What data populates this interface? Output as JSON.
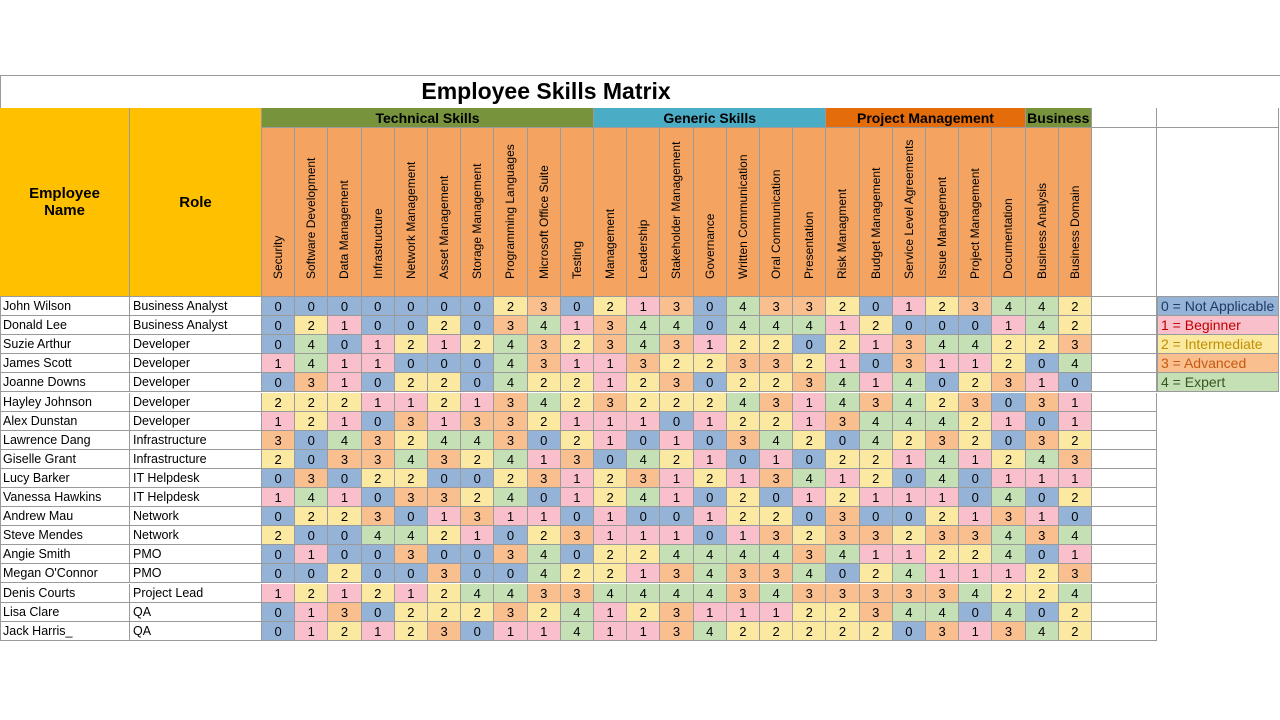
{
  "title": "Employee Skills Matrix",
  "headers": {
    "name": "Employee Name",
    "role": "Role"
  },
  "groups": [
    {
      "label": "Technical Skills",
      "color": "#77933c",
      "span": 10
    },
    {
      "label": "Generic Skills",
      "color": "#4bacc6",
      "span": 7
    },
    {
      "label": "Project Management",
      "color": "#e46c0a",
      "span": 6
    },
    {
      "label": "Business",
      "color": "#77933c",
      "span": 2
    }
  ],
  "skills": [
    "Security",
    "Software Development",
    "Data Management",
    "Infrastructure",
    "Network Management",
    "Asset Management",
    "Storage Management",
    "Programming Languages",
    "Microsoft Office Suite",
    "Testing",
    "Management",
    "Leadership",
    "Stakeholder Management",
    "Governance",
    "Written Communication",
    "Oral Communication",
    "Presentation",
    "Risk Managment",
    "Budget Management",
    "Service Level Agreements",
    "Issue Management",
    "Project Management",
    "Documentation",
    "Business Analysis",
    "Business Domain"
  ],
  "level_colors": {
    "0": "#95b3d7",
    "1": "#f9c0cb",
    "2": "#fbe9a2",
    "3": "#fabf8f",
    "4": "#c4e0b4"
  },
  "legend": [
    {
      "level": 0,
      "label": "0 = Not Applicable",
      "text_color": "#1f3864"
    },
    {
      "level": 1,
      "label": "1 = Beginner",
      "text_color": "#c00000"
    },
    {
      "level": 2,
      "label": "2 = Intermediate",
      "text_color": "#bf8f00"
    },
    {
      "level": 3,
      "label": "3 = Advanced",
      "text_color": "#c55a11"
    },
    {
      "level": 4,
      "label": "4 = Expert",
      "text_color": "#375623"
    }
  ],
  "employees": [
    {
      "name": "John Wilson",
      "role": "Business Analyst",
      "scores": [
        0,
        0,
        0,
        0,
        0,
        0,
        0,
        2,
        3,
        0,
        2,
        1,
        3,
        0,
        4,
        3,
        3,
        2,
        0,
        1,
        2,
        3,
        4,
        4,
        2
      ]
    },
    {
      "name": "Donald Lee",
      "role": "Business Analyst",
      "scores": [
        0,
        2,
        1,
        0,
        0,
        2,
        0,
        3,
        4,
        1,
        3,
        4,
        4,
        0,
        4,
        4,
        4,
        1,
        2,
        0,
        0,
        0,
        1,
        4,
        2
      ]
    },
    {
      "name": "Suzie Arthur",
      "role": "Developer",
      "scores": [
        0,
        4,
        0,
        1,
        2,
        1,
        2,
        4,
        3,
        2,
        3,
        4,
        3,
        1,
        2,
        2,
        0,
        2,
        1,
        3,
        4,
        4,
        2,
        2,
        3
      ]
    },
    {
      "name": "James Scott",
      "role": "Developer",
      "scores": [
        1,
        4,
        1,
        1,
        0,
        0,
        0,
        4,
        3,
        1,
        1,
        3,
        2,
        2,
        3,
        3,
        2,
        1,
        0,
        3,
        1,
        1,
        2,
        0,
        4
      ]
    },
    {
      "name": "Joanne Downs",
      "role": "Developer",
      "scores": [
        0,
        3,
        1,
        0,
        2,
        2,
        0,
        4,
        2,
        2,
        1,
        2,
        3,
        0,
        2,
        2,
        3,
        4,
        1,
        4,
        0,
        2,
        3,
        1,
        0
      ]
    },
    {
      "name": "Hayley Johnson",
      "role": "Developer",
      "scores": [
        2,
        2,
        2,
        1,
        1,
        2,
        1,
        3,
        4,
        2,
        3,
        2,
        2,
        2,
        4,
        3,
        1,
        4,
        3,
        4,
        2,
        3,
        0,
        3,
        1
      ]
    },
    {
      "name": "Alex Dunstan",
      "role": "Developer",
      "scores": [
        1,
        2,
        1,
        0,
        3,
        1,
        3,
        3,
        2,
        1,
        1,
        1,
        0,
        1,
        2,
        2,
        1,
        3,
        4,
        4,
        4,
        2,
        1,
        0,
        1
      ]
    },
    {
      "name": "Lawrence Dang",
      "role": "Infrastructure",
      "scores": [
        3,
        0,
        4,
        3,
        2,
        4,
        4,
        3,
        0,
        2,
        1,
        0,
        1,
        0,
        3,
        4,
        2,
        0,
        4,
        2,
        3,
        2,
        0,
        3,
        2
      ]
    },
    {
      "name": "Giselle Grant",
      "role": "Infrastructure",
      "scores": [
        2,
        0,
        3,
        3,
        4,
        3,
        2,
        4,
        1,
        3,
        0,
        4,
        2,
        1,
        0,
        1,
        0,
        2,
        2,
        1,
        4,
        1,
        2,
        4,
        3
      ]
    },
    {
      "name": "Lucy Barker",
      "role": "IT Helpdesk",
      "scores": [
        0,
        3,
        0,
        2,
        2,
        0,
        0,
        2,
        3,
        1,
        2,
        3,
        1,
        2,
        1,
        3,
        4,
        1,
        2,
        0,
        4,
        0,
        1,
        1,
        1
      ]
    },
    {
      "name": "Vanessa Hawkins",
      "role": "IT Helpdesk",
      "scores": [
        1,
        4,
        1,
        0,
        3,
        3,
        2,
        4,
        0,
        1,
        2,
        4,
        1,
        0,
        2,
        0,
        1,
        2,
        1,
        1,
        1,
        0,
        4,
        0,
        2
      ]
    },
    {
      "name": "Andrew Mau",
      "role": "Network",
      "scores": [
        0,
        2,
        2,
        3,
        0,
        1,
        3,
        1,
        1,
        0,
        1,
        0,
        0,
        1,
        2,
        2,
        0,
        3,
        0,
        0,
        2,
        1,
        3,
        1,
        0
      ]
    },
    {
      "name": "Steve Mendes",
      "role": "Network",
      "scores": [
        2,
        0,
        0,
        4,
        4,
        2,
        1,
        0,
        2,
        3,
        1,
        1,
        1,
        0,
        1,
        3,
        2,
        3,
        3,
        2,
        3,
        3,
        4,
        3,
        4
      ]
    },
    {
      "name": "Angie Smith",
      "role": "PMO",
      "scores": [
        0,
        1,
        0,
        0,
        3,
        0,
        0,
        3,
        4,
        0,
        2,
        2,
        4,
        4,
        4,
        4,
        3,
        4,
        1,
        1,
        2,
        2,
        4,
        0,
        1
      ]
    },
    {
      "name": "Megan O'Connor",
      "role": "PMO",
      "scores": [
        0,
        0,
        2,
        0,
        0,
        3,
        0,
        0,
        4,
        2,
        2,
        1,
        3,
        4,
        3,
        3,
        4,
        0,
        2,
        4,
        1,
        1,
        1,
        2,
        3
      ]
    },
    {
      "name": "Denis Courts",
      "role": "Project Lead",
      "scores": [
        1,
        2,
        1,
        2,
        1,
        2,
        4,
        4,
        3,
        3,
        4,
        4,
        4,
        4,
        3,
        4,
        3,
        3,
        3,
        3,
        3,
        4,
        2,
        2,
        4
      ]
    },
    {
      "name": "Lisa Clare",
      "role": "QA",
      "scores": [
        0,
        1,
        3,
        0,
        2,
        2,
        2,
        3,
        2,
        4,
        1,
        2,
        3,
        1,
        1,
        1,
        2,
        2,
        3,
        4,
        4,
        0,
        4,
        0,
        2
      ]
    },
    {
      "name": "Jack Harris_",
      "role": "QA",
      "scores": [
        0,
        1,
        2,
        1,
        2,
        3,
        0,
        1,
        1,
        4,
        1,
        1,
        3,
        4,
        2,
        2,
        2,
        2,
        2,
        0,
        3,
        1,
        3,
        4,
        2
      ]
    }
  ]
}
